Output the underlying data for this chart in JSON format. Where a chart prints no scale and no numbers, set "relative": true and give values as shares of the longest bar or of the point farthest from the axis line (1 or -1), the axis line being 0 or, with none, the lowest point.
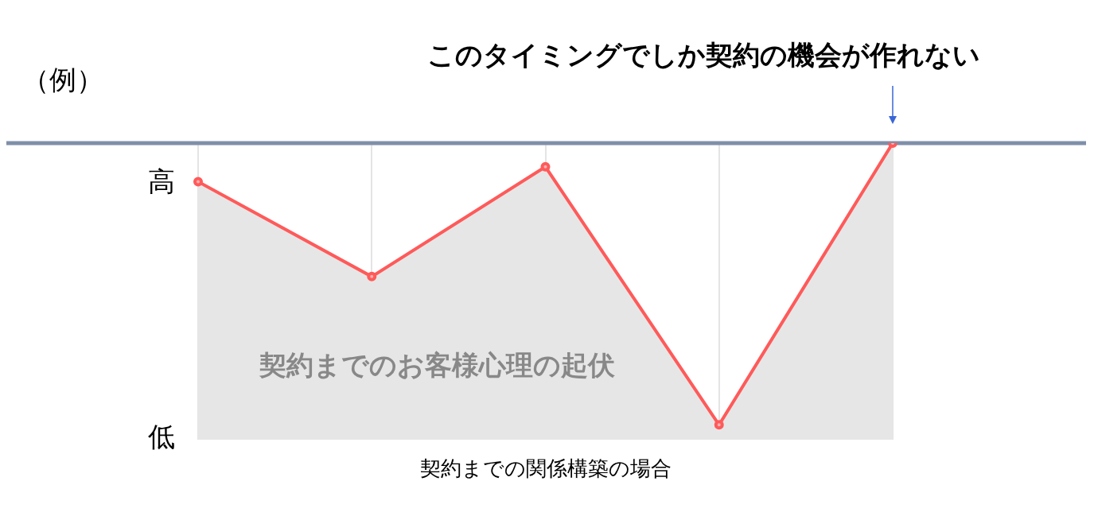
{
  "chart_data": {
    "type": "area",
    "title": "（例）",
    "xlabel": "契約までの関係構築の場合",
    "relative": true,
    "categories": [
      null,
      null,
      null,
      null,
      null
    ],
    "series": [
      {
        "color": "#ff5a5a",
        "values": [
          0.87,
          0.55,
          0.92,
          0.05,
          1.0
        ]
      }
    ],
    "ref_lines": [
      {
        "axis": "y",
        "value": 1.0,
        "color": "#7f8fa9"
      }
    ],
    "annotations": [
      "高",
      "低",
      "このタイミングでしか契約の機会が作れない",
      "契約までのお客様心理の起伏"
    ],
    "grid": "x",
    "marker": "circle",
    "legend": false
  }
}
